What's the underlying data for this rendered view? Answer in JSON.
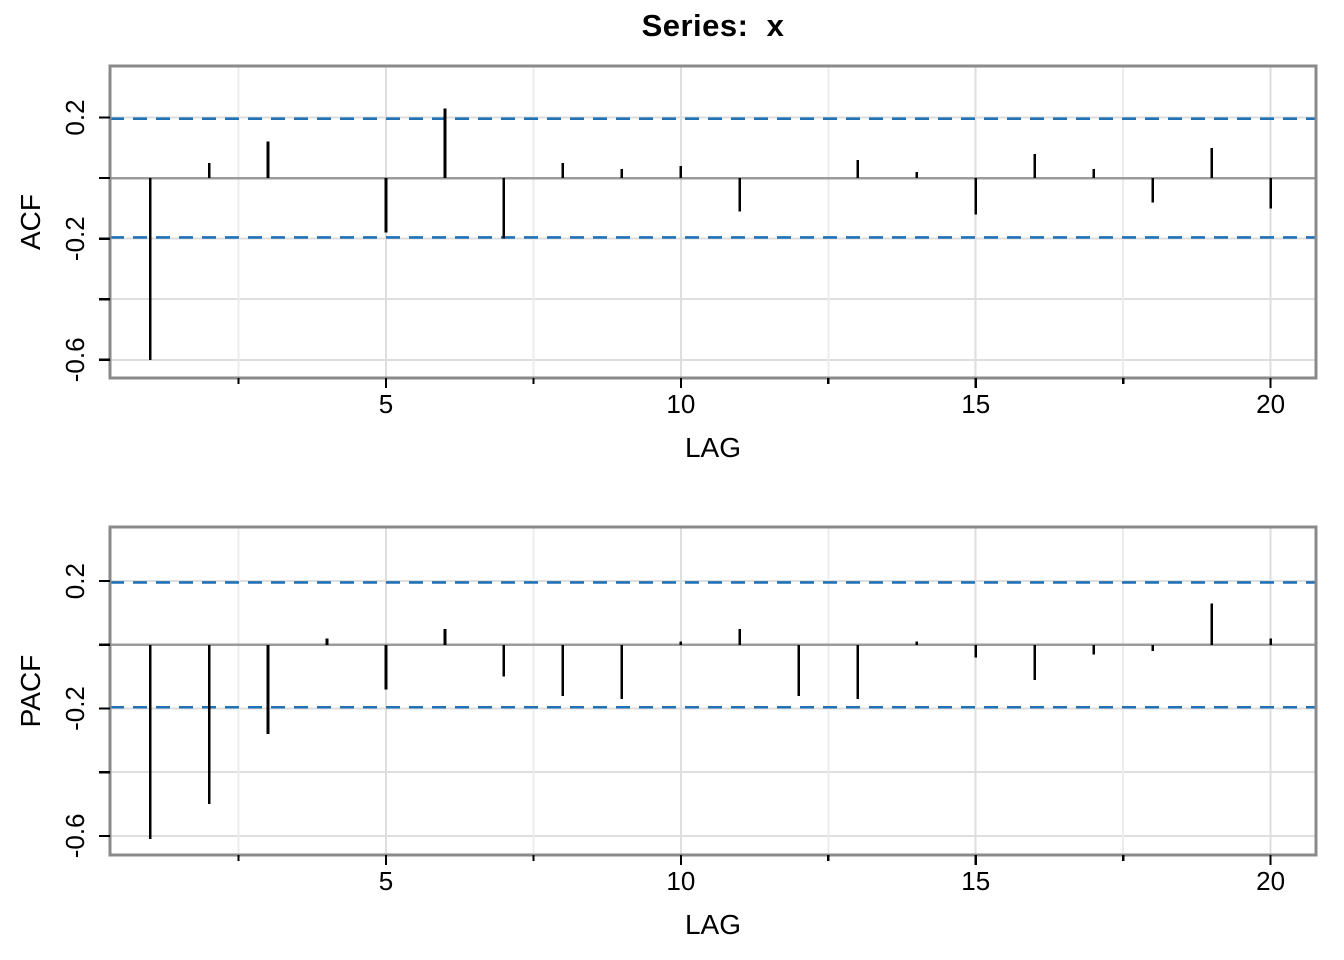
{
  "title": "Series:  x",
  "colors": {
    "spike": "#000000",
    "ci_line": "#2171b5",
    "panel_border": "#8a8a8a",
    "zero_line": "#9b9b9b",
    "grid_major": "#dedede",
    "grid_minor": "#ececec",
    "tick": "#000000",
    "text": "#000000",
    "background": "#ffffff"
  },
  "chart_data": [
    {
      "type": "bar",
      "name": "ACF",
      "title": "Series:  x",
      "ylabel": "ACF",
      "xlabel": "LAG",
      "x": [
        1,
        2,
        3,
        4,
        5,
        6,
        7,
        8,
        9,
        10,
        11,
        12,
        13,
        14,
        15,
        16,
        17,
        18,
        19,
        20
      ],
      "values": [
        -0.6,
        0.05,
        0.12,
        0.0,
        -0.18,
        0.23,
        -0.2,
        0.05,
        0.03,
        0.04,
        -0.11,
        0.0,
        0.06,
        0.02,
        -0.12,
        0.08,
        0.03,
        -0.08,
        0.1,
        -0.1
      ],
      "conf_level": 0.196,
      "ci_style": "dashed",
      "xlim": [
        0.32,
        20.77
      ],
      "ylim": [
        -0.66,
        0.37
      ],
      "x_major_ticks": [
        5,
        10,
        15,
        20
      ],
      "x_minor_ticks": [
        2.5,
        7.5,
        12.5,
        17.5
      ],
      "y_ticks": [
        0.2,
        0,
        -0.2,
        -0.4,
        -0.6
      ],
      "y_tick_labels": [
        "0.2",
        "",
        "-0.2",
        "",
        "-0.6"
      ],
      "grid": true,
      "legend": "none"
    },
    {
      "type": "bar",
      "name": "PACF",
      "title": "",
      "ylabel": "PACF",
      "xlabel": "LAG",
      "x": [
        1,
        2,
        3,
        4,
        5,
        6,
        7,
        8,
        9,
        10,
        11,
        12,
        13,
        14,
        15,
        16,
        17,
        18,
        19,
        20
      ],
      "values": [
        -0.61,
        -0.5,
        -0.28,
        0.02,
        -0.14,
        0.05,
        -0.1,
        -0.16,
        -0.17,
        0.01,
        0.05,
        -0.16,
        -0.17,
        0.01,
        -0.04,
        -0.11,
        -0.03,
        -0.02,
        0.13,
        0.02
      ],
      "conf_level": 0.196,
      "ci_style": "dashed",
      "xlim": [
        0.32,
        20.77
      ],
      "ylim": [
        -0.66,
        0.37
      ],
      "x_major_ticks": [
        5,
        10,
        15,
        20
      ],
      "x_minor_ticks": [
        2.5,
        7.5,
        12.5,
        17.5
      ],
      "y_ticks": [
        0.2,
        0,
        -0.2,
        -0.4,
        -0.6
      ],
      "y_tick_labels": [
        "0.2",
        "",
        "-0.2",
        "",
        "-0.6"
      ],
      "grid": true,
      "legend": "none"
    }
  ]
}
